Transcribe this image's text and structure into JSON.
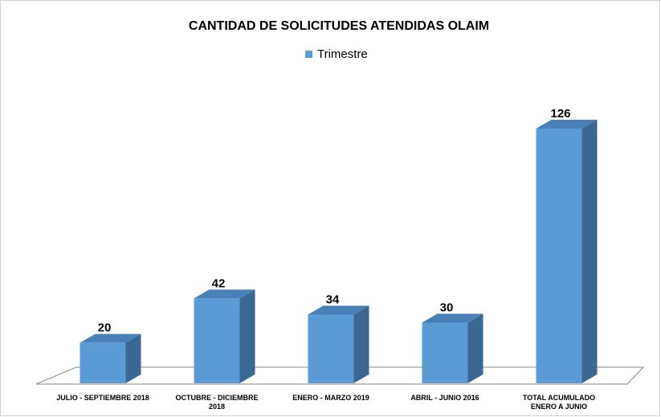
{
  "chart_data": {
    "type": "bar3d",
    "title": "CANTIDAD DE SOLICITUDES ATENDIDAS OLAIM",
    "categories": [
      "JULIO - SEPTIEMBRE 2018",
      "OCTUBRE - DICIEMBRE 2018",
      "ENERO - MARZO 2019",
      "ABRIL - JUNIO 2016",
      "TOTAL ACUMULADO ENERO A JUNIO"
    ],
    "series": [
      {
        "name": "Trimestre",
        "color": "#5b9bd5",
        "values": [
          20,
          42,
          34,
          30,
          126
        ]
      }
    ]
  }
}
